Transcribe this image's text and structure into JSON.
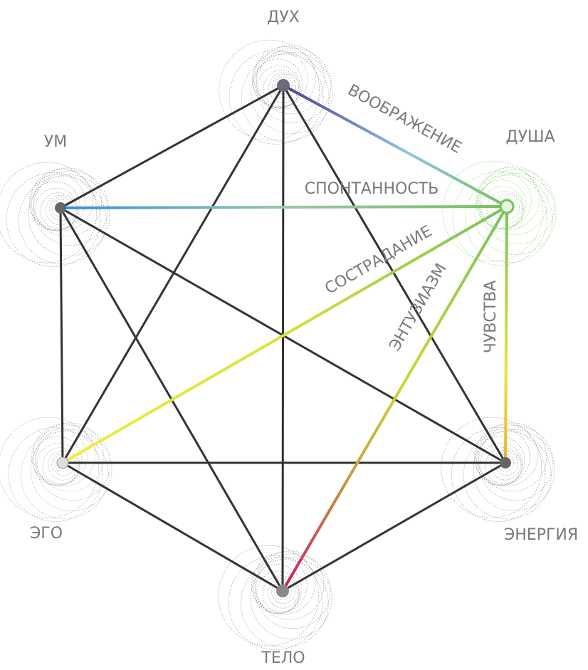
{
  "nodes": [
    {
      "label": "ДУХ"
    },
    {
      "label": "ДУША"
    },
    {
      "label": "УМ"
    },
    {
      "label": "ЭГО"
    },
    {
      "label": "ЭНЕРГИЯ"
    },
    {
      "label": "ТЕЛО"
    }
  ],
  "edges": [
    {
      "label": "ВООБРАЖЕНИЕ"
    },
    {
      "label": "СПОНТАННОСТЬ"
    },
    {
      "label": "СОСТРАДАНИЕ"
    },
    {
      "label": "ЭНТУЗИАЗМ"
    },
    {
      "label": "ЧУВСТВА"
    }
  ]
}
